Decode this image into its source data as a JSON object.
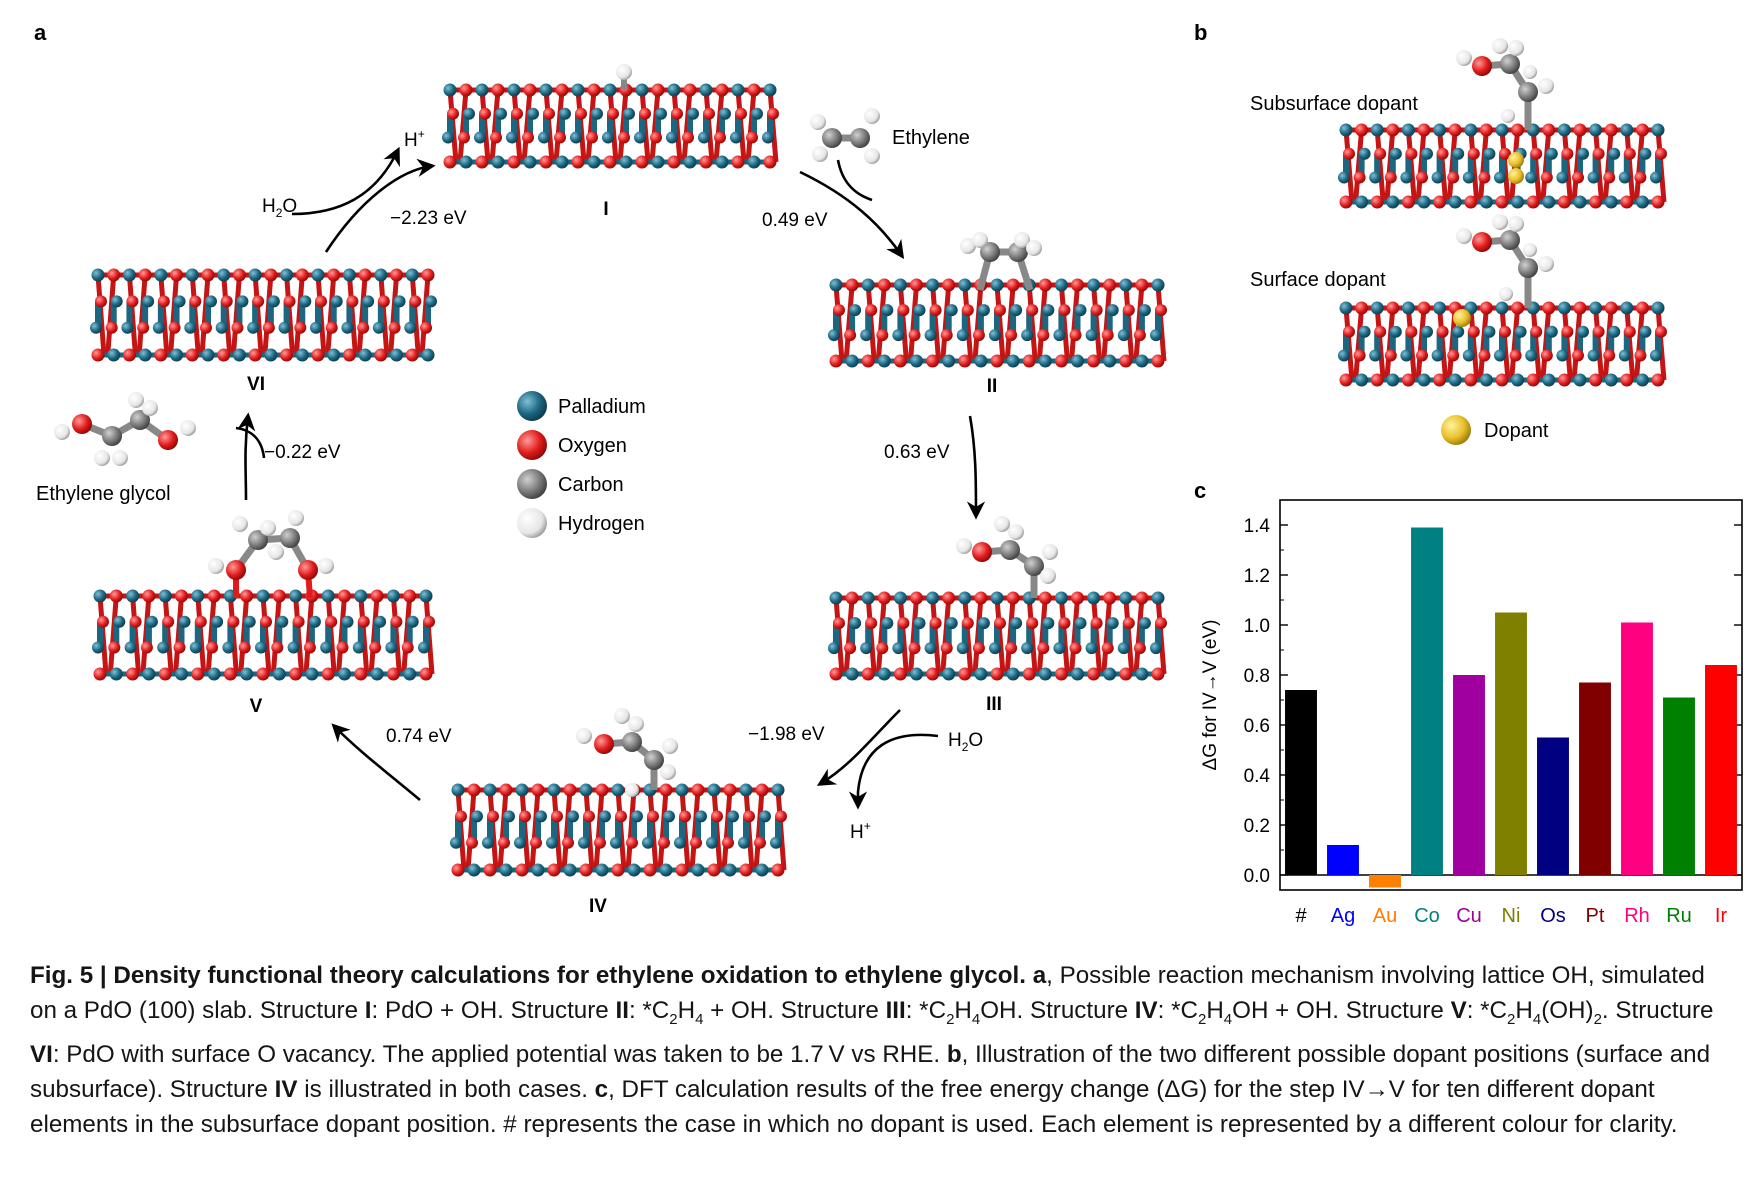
{
  "panel_labels": {
    "a": "a",
    "b": "b",
    "c": "c"
  },
  "structures": {
    "I": "I",
    "II": "II",
    "III": "III",
    "IV": "IV",
    "V": "V",
    "VI": "VI"
  },
  "energies": {
    "vi_to_i": "−2.23 eV",
    "i_to_ii": "0.49 eV",
    "ii_to_iii": "0.63 eV",
    "iii_to_iv": "−1.98 eV",
    "iv_to_v": "0.74 eV",
    "v_to_vi": "−0.22 eV"
  },
  "species": {
    "h2o_top": "H2O",
    "hplus_top": "H+",
    "h2o_bottom": "H2O",
    "hplus_bottom": "H+",
    "ethylene": "Ethylene",
    "ethylene_glycol": "Ethylene glycol"
  },
  "legend": [
    {
      "label": "Palladium",
      "color": "#1b6680"
    },
    {
      "label": "Oxygen",
      "color": "#e11b1b"
    },
    {
      "label": "Carbon",
      "color": "#7a7a7a"
    },
    {
      "label": "Hydrogen",
      "color": "#e6e6e6"
    }
  ],
  "panel_b": {
    "subsurface_label": "Subsurface dopant",
    "surface_label": "Surface dopant",
    "dopant_label": "Dopant",
    "dopant_color": "#e9c02a"
  },
  "chart_data": {
    "type": "bar",
    "categories": [
      "#",
      "Ag",
      "Au",
      "Co",
      "Cu",
      "Ni",
      "Os",
      "Pt",
      "Rh",
      "Ru",
      "Ir"
    ],
    "values": [
      0.74,
      0.12,
      -0.05,
      1.39,
      0.8,
      1.05,
      0.55,
      0.77,
      1.01,
      0.71,
      0.84
    ],
    "colors": [
      "#000000",
      "#0000ff",
      "#ff7f00",
      "#008080",
      "#a000a0",
      "#808000",
      "#000080",
      "#800000",
      "#ff0080",
      "#008000",
      "#ff0000"
    ],
    "title": "",
    "xlabel": "",
    "ylabel": "ΔG for IV→V (eV)",
    "ylim": [
      -0.06,
      1.5
    ],
    "yticks": [
      "0.0",
      "0.2",
      "0.4",
      "0.6",
      "0.8",
      "1.0",
      "1.2",
      "1.4"
    ],
    "grid": false
  },
  "caption": {
    "fig_label": "Fig. 5 | Density functional theory calculations for ethylene oxidation to ethylene glycol.",
    "a_label": "a",
    "a_text_1": ", Possible reaction mechanism involving lattice OH, simulated on a PdO (100) slab. Structure ",
    "s1": "I",
    "t1": ": PdO + OH. Structure ",
    "s2": "II",
    "t2a": ": *C",
    "t2_sub1": "2",
    "t2b": "H",
    "t2_sub2": "4",
    "t2c": " + OH. Structure ",
    "s3": "III",
    "t3a": ": *C",
    "t3_sub1": "2",
    "t3b": "H",
    "t3_sub2": "4",
    "t3c": "OH. Structure ",
    "s4": "IV",
    "t4a": ": *C",
    "t4_sub1": "2",
    "t4b": "H",
    "t4_sub2": "4",
    "t4c": "OH + OH. Structure ",
    "s5": "V",
    "t5a": ": *C",
    "t5_sub1": "2",
    "t5b": "H",
    "t5_sub2": "4",
    "t5c": "(OH)",
    "t5_sub3": "2",
    "t5d": ". Structure ",
    "s6": "VI",
    "t6": ": PdO with surface O vacancy. The applied potential was taken to be 1.7 V vs RHE. ",
    "b_label": "b",
    "b_text_1": ", Illustration of the two different possible dopant positions (surface and subsurface). Structure ",
    "b_s": "IV",
    "b_text_2": " is illustrated in both cases. ",
    "c_label": "c",
    "c_text": ", DFT calculation results of the free energy change (ΔG) for the step IV→V for ten different dopant elements in the subsurface dopant position. # represents the case in which no dopant is used. Each element is represented by a different colour for clarity."
  }
}
